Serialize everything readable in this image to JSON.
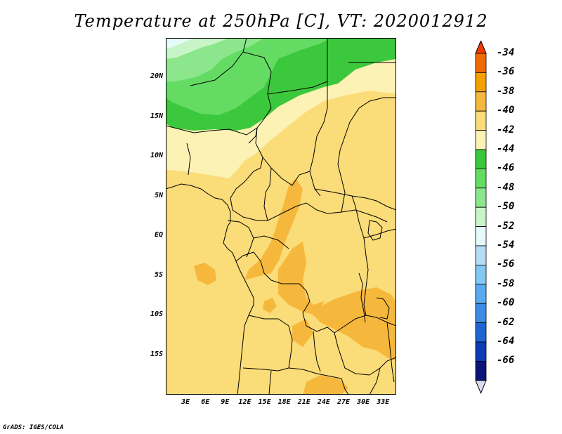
{
  "title": "Temperature at 250hPa [C], VT: 2020012912",
  "footer": "GrADS: IGES/COLA",
  "map": {
    "variable": "Temperature at 250hPa",
    "units": "C",
    "valid_time": "2020012912",
    "lon_range": [
      0,
      35
    ],
    "lat_range": [
      -20,
      25
    ],
    "lat_ticks": [
      {
        "value": 20,
        "label": "20N"
      },
      {
        "value": 15,
        "label": "15N"
      },
      {
        "value": 10,
        "label": "10N"
      },
      {
        "value": 5,
        "label": "5N"
      },
      {
        "value": 0,
        "label": "EQ"
      },
      {
        "value": -5,
        "label": "5S"
      },
      {
        "value": -10,
        "label": "10S"
      },
      {
        "value": -15,
        "label": "15S"
      }
    ],
    "lon_ticks": [
      {
        "value": 3,
        "label": "3E"
      },
      {
        "value": 6,
        "label": "6E"
      },
      {
        "value": 9,
        "label": "9E"
      },
      {
        "value": 12,
        "label": "12E"
      },
      {
        "value": 15,
        "label": "15E"
      },
      {
        "value": 18,
        "label": "18E"
      },
      {
        "value": 21,
        "label": "21E"
      },
      {
        "value": 24,
        "label": "24E"
      },
      {
        "value": 27,
        "label": "27E"
      },
      {
        "value": 30,
        "label": "30E"
      },
      {
        "value": 33,
        "label": "33E"
      }
    ]
  },
  "colorbar": {
    "levels": [
      "-34",
      "-36",
      "-38",
      "-40",
      "-42",
      "-44",
      "-46",
      "-48",
      "-50",
      "-52",
      "-54",
      "-56",
      "-58",
      "-60",
      "-62",
      "-64",
      "-66"
    ],
    "colors": [
      "#f03c00",
      "#f06a00",
      "#f4a000",
      "#f6b83c",
      "#fadc78",
      "#fcf2b4",
      "#3cc83c",
      "#64dc64",
      "#8ce68c",
      "#c8f5c8",
      "#e6fafa",
      "#b4dcf5",
      "#82c8f0",
      "#5aaaf0",
      "#3c8ce6",
      "#1e64d2",
      "#0a3cb4",
      "#0a1478",
      "#dcdcf5"
    ]
  }
}
